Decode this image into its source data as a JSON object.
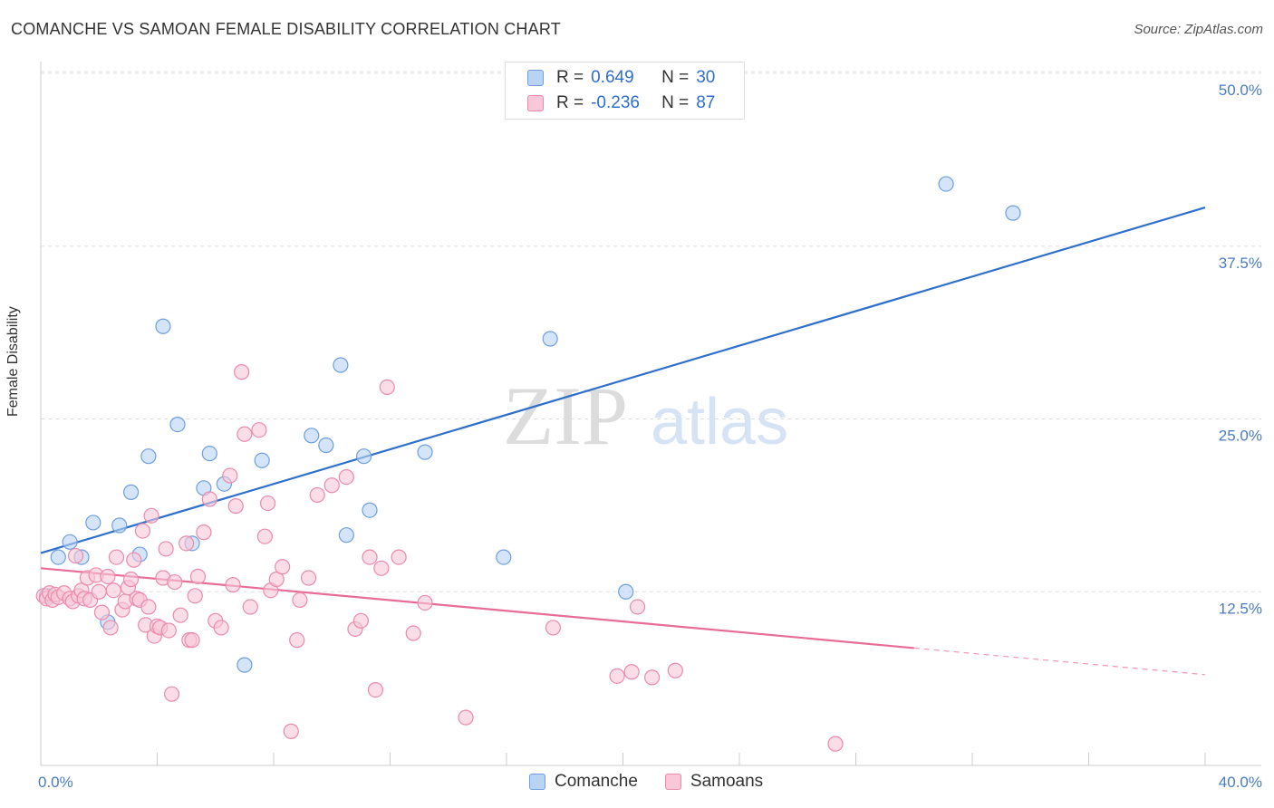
{
  "header": {
    "title": "COMANCHE VS SAMOAN FEMALE DISABILITY CORRELATION CHART",
    "source": "Source: ZipAtlas.com"
  },
  "legend_top": {
    "rows": [
      {
        "r_label": "R = ",
        "r_value": "0.649",
        "n_label": "N = ",
        "n_value": "30"
      },
      {
        "r_label": "R = ",
        "r_value": "-0.236",
        "n_label": "N = ",
        "n_value": "87"
      }
    ]
  },
  "legend_bottom": [
    "Comanche",
    "Samoans"
  ],
  "watermark": {
    "zip": "ZIP",
    "atlas": "atlas"
  },
  "colors": {
    "comanche_fill": "#b9d3f5",
    "comanche_stroke": "#6f9fe0",
    "comanche_line": "#2f6fcc",
    "samoans_fill": "#f9c7d7",
    "samoans_stroke": "#ea8bab",
    "samoans_line": "#e86c98",
    "tick_label": "#4a7cc6",
    "grid": "#dddddd"
  },
  "chart_data": {
    "type": "scatter",
    "title": "COMANCHE VS SAMOAN FEMALE DISABILITY CORRELATION CHART",
    "ylabel": "Female Disability",
    "xlabel": "",
    "xlim": [
      0,
      40
    ],
    "ylim": [
      0,
      50
    ],
    "y_ticks": [
      12.5,
      25.0,
      37.5,
      50.0
    ],
    "y_tick_labels": [
      "12.5%",
      "25.0%",
      "37.5%",
      "50.0%"
    ],
    "x_tick_labels": [
      "0.0%",
      "40.0%"
    ],
    "grid": "horizontal dashed",
    "legend": "top-center",
    "series": [
      {
        "name": "Comanche",
        "R": 0.649,
        "N": 30,
        "trend": {
          "x": [
            0,
            40
          ],
          "y": [
            15.3,
            40.3
          ],
          "dashed_from": null
        },
        "points": [
          [
            0.6,
            15.0
          ],
          [
            1.0,
            16.1
          ],
          [
            1.4,
            15.0
          ],
          [
            1.8,
            17.5
          ],
          [
            2.3,
            10.3
          ],
          [
            2.7,
            17.3
          ],
          [
            3.1,
            19.7
          ],
          [
            3.4,
            15.2
          ],
          [
            3.7,
            22.3
          ],
          [
            4.2,
            31.7
          ],
          [
            4.7,
            24.6
          ],
          [
            5.2,
            16.0
          ],
          [
            5.6,
            20.0
          ],
          [
            5.8,
            22.5
          ],
          [
            6.3,
            20.3
          ],
          [
            7.0,
            7.2
          ],
          [
            7.6,
            22.0
          ],
          [
            9.3,
            23.8
          ],
          [
            9.8,
            23.1
          ],
          [
            10.3,
            28.9
          ],
          [
            10.5,
            16.6
          ],
          [
            11.1,
            22.3
          ],
          [
            11.3,
            18.4
          ],
          [
            13.2,
            22.6
          ],
          [
            15.9,
            15.0
          ],
          [
            17.5,
            30.8
          ],
          [
            20.1,
            12.5
          ],
          [
            31.1,
            42.0
          ],
          [
            33.4,
            39.9
          ],
          [
            0.2,
            12.2
          ]
        ]
      },
      {
        "name": "Samoans",
        "R": -0.236,
        "N": 87,
        "trend": {
          "x": [
            0,
            40
          ],
          "y": [
            14.2,
            6.5
          ],
          "dashed_from": 30.0
        },
        "points": [
          [
            0.1,
            12.2
          ],
          [
            0.2,
            12.0
          ],
          [
            0.3,
            12.4
          ],
          [
            0.4,
            11.9
          ],
          [
            0.5,
            12.3
          ],
          [
            0.6,
            12.1
          ],
          [
            0.8,
            12.4
          ],
          [
            1.0,
            12.0
          ],
          [
            1.1,
            11.8
          ],
          [
            1.2,
            15.1
          ],
          [
            1.3,
            12.2
          ],
          [
            1.4,
            12.6
          ],
          [
            1.5,
            12.0
          ],
          [
            1.6,
            13.5
          ],
          [
            1.7,
            11.9
          ],
          [
            1.9,
            13.7
          ],
          [
            2.0,
            12.5
          ],
          [
            2.1,
            11.0
          ],
          [
            2.3,
            13.6
          ],
          [
            2.4,
            9.9
          ],
          [
            2.5,
            12.6
          ],
          [
            2.6,
            15.0
          ],
          [
            2.8,
            11.2
          ],
          [
            2.9,
            11.8
          ],
          [
            3.0,
            12.8
          ],
          [
            3.1,
            13.4
          ],
          [
            3.2,
            14.8
          ],
          [
            3.3,
            12.0
          ],
          [
            3.4,
            11.9
          ],
          [
            3.5,
            16.9
          ],
          [
            3.6,
            10.1
          ],
          [
            3.7,
            11.4
          ],
          [
            3.8,
            18.0
          ],
          [
            3.9,
            9.3
          ],
          [
            4.0,
            10.0
          ],
          [
            4.1,
            9.9
          ],
          [
            4.2,
            13.5
          ],
          [
            4.3,
            15.6
          ],
          [
            4.4,
            9.7
          ],
          [
            4.5,
            5.1
          ],
          [
            4.6,
            13.2
          ],
          [
            4.8,
            10.8
          ],
          [
            5.0,
            16.0
          ],
          [
            5.1,
            9.0
          ],
          [
            5.2,
            9.0
          ],
          [
            5.3,
            12.2
          ],
          [
            5.4,
            13.6
          ],
          [
            5.6,
            16.8
          ],
          [
            5.8,
            19.2
          ],
          [
            6.0,
            10.4
          ],
          [
            6.2,
            9.9
          ],
          [
            6.5,
            20.9
          ],
          [
            6.6,
            13.0
          ],
          [
            6.7,
            18.7
          ],
          [
            6.9,
            28.4
          ],
          [
            7.0,
            23.9
          ],
          [
            7.2,
            11.4
          ],
          [
            7.5,
            24.2
          ],
          [
            7.7,
            16.5
          ],
          [
            7.8,
            18.9
          ],
          [
            7.9,
            12.6
          ],
          [
            8.1,
            13.4
          ],
          [
            8.3,
            14.3
          ],
          [
            8.6,
            2.4
          ],
          [
            8.8,
            9.0
          ],
          [
            8.9,
            11.9
          ],
          [
            9.2,
            13.5
          ],
          [
            9.5,
            19.5
          ],
          [
            10.0,
            20.2
          ],
          [
            10.5,
            20.8
          ],
          [
            10.8,
            9.8
          ],
          [
            11.0,
            10.4
          ],
          [
            11.3,
            15.0
          ],
          [
            11.5,
            5.4
          ],
          [
            11.7,
            14.2
          ],
          [
            11.9,
            27.3
          ],
          [
            12.3,
            15.0
          ],
          [
            12.8,
            9.5
          ],
          [
            13.2,
            11.7
          ],
          [
            14.6,
            3.4
          ],
          [
            17.6,
            9.9
          ],
          [
            19.8,
            6.4
          ],
          [
            20.3,
            6.7
          ],
          [
            20.5,
            11.4
          ],
          [
            21.0,
            6.3
          ],
          [
            21.8,
            6.8
          ],
          [
            27.3,
            1.5
          ]
        ]
      }
    ]
  }
}
